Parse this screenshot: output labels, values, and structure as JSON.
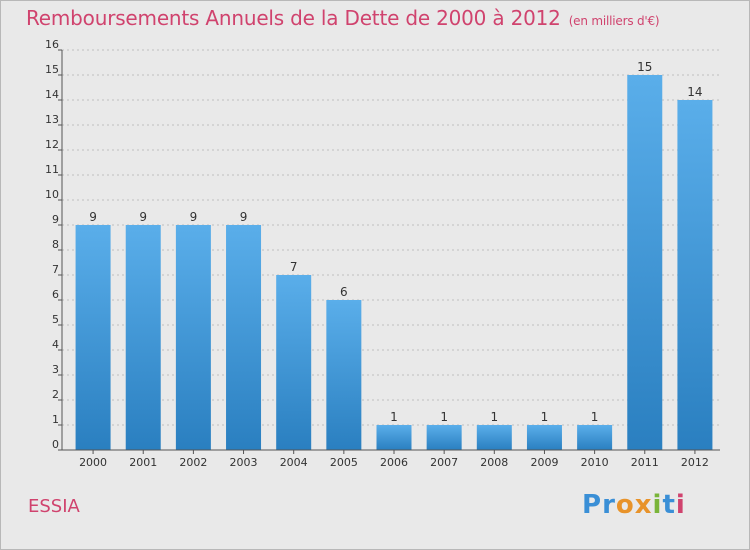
{
  "title": "Remboursements Annuels de la Dette de 2000 à 2012",
  "units": "(en milliers d'€)",
  "place": "ESSIA",
  "logo": {
    "text": "Proxiti",
    "letters": [
      {
        "ch": "P",
        "color": "#3a8fd6"
      },
      {
        "ch": "r",
        "color": "#3a8fd6"
      },
      {
        "ch": "o",
        "color": "#e8932a"
      },
      {
        "ch": "x",
        "color": "#e8932a"
      },
      {
        "ch": "i",
        "color": "#7ab53a"
      },
      {
        "ch": "t",
        "color": "#3a8fd6"
      },
      {
        "ch": "i",
        "color": "#d0436e"
      }
    ]
  },
  "colors": {
    "bar_light": "#5aaeea",
    "bar_dark": "#2a7fc0",
    "title": "#d0436e",
    "grid": "#bfbfbf"
  },
  "chart_data": {
    "type": "bar",
    "categories": [
      "2000",
      "2001",
      "2002",
      "2003",
      "2004",
      "2005",
      "2006",
      "2007",
      "2008",
      "2009",
      "2010",
      "2011",
      "2012"
    ],
    "values": [
      9,
      9,
      9,
      9,
      7,
      6,
      1,
      1,
      1,
      1,
      1,
      15,
      14
    ],
    "data_labels": [
      "9",
      "9",
      "9",
      "9",
      "7",
      "6",
      "1",
      "1",
      "1",
      "1",
      "1",
      "15",
      "14"
    ],
    "title": "Remboursements Annuels de la Dette de 2000 à 2012",
    "xlabel": "",
    "ylabel": "",
    "ylim": [
      0,
      16
    ],
    "yticks": [
      "0",
      "1",
      "2",
      "3",
      "4",
      "5",
      "6",
      "7",
      "8",
      "9",
      "10",
      "11",
      "12",
      "13",
      "14",
      "15",
      "16"
    ],
    "grid": true,
    "legend": "none"
  }
}
